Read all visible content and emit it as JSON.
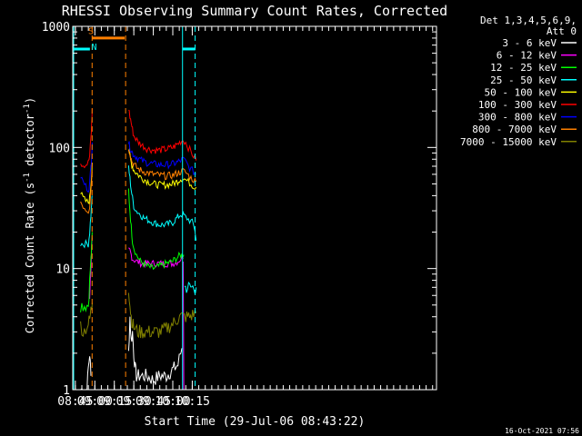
{
  "chart_data": {
    "type": "line",
    "title": "RHESSI Observing Summary Count Rates, Corrected",
    "xlabel": "Start Time (29-Jul-06 08:43:22)",
    "ylabel_main": "Corrected Count Rate (s",
    "ylabel_sup1": "-1",
    "ylabel_mid": " detector",
    "ylabel_sup2": "-1",
    "ylabel_end": ")",
    "y_scale": "log",
    "ylim": [
      1,
      1000
    ],
    "xlim_min": [
      523,
      803
    ],
    "x_ticks": [
      {
        "t": 525,
        "label": "08:45"
      },
      {
        "t": 540,
        "label": "09:00"
      },
      {
        "t": 555,
        "label": "09:15"
      },
      {
        "t": 570,
        "label": "09:30"
      },
      {
        "t": 585,
        "label": "09:45"
      },
      {
        "t": 600,
        "label": "10:00"
      },
      {
        "t": 615,
        "label": "10:15"
      }
    ],
    "y_ticks": [
      {
        "v": 1,
        "label": "1"
      },
      {
        "v": 10,
        "label": "10"
      },
      {
        "v": 100,
        "label": "100"
      },
      {
        "v": 1000,
        "label": "1000"
      }
    ],
    "legend_header": [
      "Det 1,3,4,5,6,9,",
      "Att 0"
    ],
    "legend_position": "right",
    "series": [
      {
        "name": "3 - 6 keV",
        "color": "#ffffff",
        "segments": [
          [
            [
              529,
              1
            ],
            [
              534,
              1
            ],
            [
              535,
              1.5
            ],
            [
              536,
              2
            ],
            [
              537,
              1.3
            ]
          ],
          [
            [
              566,
              2
            ],
            [
              567,
              4
            ],
            [
              568,
              2.5
            ],
            [
              569,
              3
            ],
            [
              570,
              2
            ],
            [
              571,
              1.5
            ],
            [
              572,
              1.3
            ],
            [
              575,
              1.3
            ],
            [
              580,
              1.3
            ],
            [
              585,
              1.2
            ],
            [
              590,
              1.3
            ],
            [
              595,
              1.3
            ],
            [
              598,
              1.4
            ],
            [
              601,
              1.5
            ],
            [
              604,
              1.6
            ],
            [
              606,
              2
            ],
            [
              607,
              2.2
            ]
          ]
        ]
      },
      {
        "name": "6 - 12 keV",
        "color": "#ff00ff",
        "segments": [
          [
            [
              536,
              6
            ],
            [
              536.5,
              8
            ],
            [
              537,
              10
            ],
            [
              537.5,
              14
            ],
            [
              538,
              18
            ]
          ],
          [
            [
              566,
              14
            ],
            [
              567,
              14
            ],
            [
              568,
              13
            ],
            [
              569,
              12
            ],
            [
              572,
              11.5
            ],
            [
              576,
              11
            ],
            [
              580,
              11
            ],
            [
              585,
              11
            ],
            [
              590,
              11
            ],
            [
              595,
              11
            ],
            [
              600,
              11
            ],
            [
              604,
              11.5
            ],
            [
              606,
              12
            ],
            [
              608,
              12
            ]
          ],
          [
            [
              608,
              12
            ],
            [
              608.5,
              1
            ]
          ]
        ]
      },
      {
        "name": "12 - 25 keV",
        "color": "#00ff00",
        "segments": [
          [
            [
              529,
              5
            ],
            [
              531,
              5
            ],
            [
              533,
              5
            ],
            [
              535,
              5
            ],
            [
              536,
              8
            ],
            [
              537,
              12
            ],
            [
              537.5,
              15
            ],
            [
              538,
              20
            ]
          ],
          [
            [
              566,
              45
            ],
            [
              567,
              30
            ],
            [
              568,
              22
            ],
            [
              569,
              17
            ],
            [
              570,
              15
            ],
            [
              572,
              13
            ],
            [
              575,
              11.5
            ],
            [
              580,
              10.5
            ],
            [
              585,
              10
            ],
            [
              590,
              10.5
            ],
            [
              595,
              11
            ],
            [
              600,
              11.5
            ],
            [
              604,
              12.5
            ],
            [
              607,
              13
            ],
            [
              608.5,
              13
            ]
          ]
        ]
      },
      {
        "name": "25 - 50 keV",
        "color": "#00ffff",
        "segments": [
          [
            [
              529,
              16
            ],
            [
              531,
              16
            ],
            [
              533,
              16
            ],
            [
              535,
              16
            ],
            [
              536,
              20
            ],
            [
              537,
              28
            ],
            [
              537.5,
              34
            ],
            [
              538,
              40
            ]
          ],
          [
            [
              566,
              70
            ],
            [
              567,
              55
            ],
            [
              568,
              45
            ],
            [
              569,
              38
            ],
            [
              570,
              33
            ],
            [
              572,
              30
            ],
            [
              575,
              28
            ],
            [
              578,
              26
            ],
            [
              580,
              25.5
            ],
            [
              585,
              24
            ],
            [
              590,
              23
            ],
            [
              595,
              23
            ],
            [
              600,
              24
            ],
            [
              603,
              26
            ],
            [
              606,
              28
            ],
            [
              608,
              28
            ],
            [
              609,
              27
            ],
            [
              611,
              26
            ],
            [
              613,
              25
            ],
            [
              615,
              24
            ],
            [
              617,
              21
            ],
            [
              618,
              17
            ]
          ],
          [
            [
              609,
              7
            ],
            [
              613,
              7
            ],
            [
              617,
              7
            ],
            [
              618,
              7
            ]
          ]
        ]
      },
      {
        "name": "50 - 100 keV",
        "color": "#ffff00",
        "segments": [
          [
            [
              529,
              42
            ],
            [
              531,
              38
            ],
            [
              533,
              36
            ],
            [
              535,
              35
            ],
            [
              536,
              38
            ],
            [
              537,
              50
            ],
            [
              537.5,
              60
            ],
            [
              538,
              75
            ]
          ],
          [
            [
              566,
              95
            ],
            [
              567,
              85
            ],
            [
              568,
              75
            ],
            [
              569,
              70
            ],
            [
              570,
              65
            ],
            [
              573,
              60
            ],
            [
              576,
              56
            ],
            [
              580,
              53
            ],
            [
              585,
              50
            ],
            [
              590,
              49
            ],
            [
              595,
              49
            ],
            [
              600,
              50
            ],
            [
              603,
              52
            ],
            [
              606,
              55
            ],
            [
              608,
              56
            ],
            [
              610,
              54
            ],
            [
              612,
              52
            ],
            [
              614,
              50
            ],
            [
              616,
              48
            ],
            [
              618,
              47
            ]
          ]
        ]
      },
      {
        "name": "100 - 300 keV",
        "color": "#ff0000",
        "segments": [
          [
            [
              529,
              75
            ],
            [
              531,
              72
            ],
            [
              533,
              72
            ],
            [
              535,
              75
            ],
            [
              536,
              85
            ],
            [
              537,
              120
            ],
            [
              537.5,
              150
            ],
            [
              538,
              210
            ]
          ],
          [
            [
              566,
              210
            ],
            [
              567,
              180
            ],
            [
              568,
              160
            ],
            [
              569,
              140
            ],
            [
              570,
              125
            ],
            [
              573,
              112
            ],
            [
              576,
              105
            ],
            [
              580,
              98
            ],
            [
              585,
              95
            ],
            [
              590,
              95
            ],
            [
              595,
              97
            ],
            [
              600,
              100
            ],
            [
              603,
              105
            ],
            [
              606,
              112
            ],
            [
              608,
              115
            ],
            [
              610,
              110
            ],
            [
              612,
              100
            ],
            [
              614,
              92
            ],
            [
              616,
              85
            ],
            [
              618,
              78
            ]
          ]
        ]
      },
      {
        "name": "300 - 800 keV",
        "color": "#0000ff",
        "segments": [
          [
            [
              529,
              58
            ],
            [
              531,
              52
            ],
            [
              533,
              48
            ],
            [
              535,
              45
            ],
            [
              536,
              50
            ],
            [
              537,
              70
            ],
            [
              537.5,
              85
            ],
            [
              538,
              110
            ]
          ],
          [
            [
              566,
              110
            ],
            [
              567,
              100
            ],
            [
              568,
              95
            ],
            [
              569,
              90
            ],
            [
              570,
              87
            ],
            [
              573,
              82
            ],
            [
              576,
              78
            ],
            [
              580,
              75
            ],
            [
              585,
              73
            ],
            [
              590,
              72
            ],
            [
              595,
              72
            ],
            [
              600,
              73
            ],
            [
              603,
              75
            ],
            [
              606,
              78
            ],
            [
              608,
              80
            ],
            [
              610,
              76
            ],
            [
              612,
              70
            ],
            [
              614,
              66
            ],
            [
              616,
              63
            ],
            [
              618,
              60
            ]
          ]
        ]
      },
      {
        "name": "800 - 7000 keV",
        "color": "#ff8000",
        "segments": [
          [
            [
              529,
              36
            ],
            [
              531,
              33
            ],
            [
              533,
              31
            ],
            [
              535,
              30
            ],
            [
              536,
              33
            ],
            [
              537,
              45
            ],
            [
              537.5,
              55
            ],
            [
              538,
              65
            ]
          ],
          [
            [
              566,
              100
            ],
            [
              567,
              90
            ],
            [
              568,
              80
            ],
            [
              569,
              75
            ],
            [
              570,
              72
            ],
            [
              573,
              67
            ],
            [
              576,
              64
            ],
            [
              580,
              62
            ],
            [
              585,
              60
            ],
            [
              590,
              59
            ],
            [
              595,
              58
            ],
            [
              600,
              59
            ],
            [
              603,
              61
            ],
            [
              606,
              63
            ],
            [
              608,
              64
            ],
            [
              610,
              62
            ],
            [
              612,
              59
            ],
            [
              614,
              56
            ],
            [
              616,
              54
            ],
            [
              618,
              52
            ]
          ]
        ]
      },
      {
        "name": "7000 - 15000 keV",
        "color": "#808000",
        "segments": [
          [
            [
              529,
              3.5
            ],
            [
              531,
              3
            ],
            [
              533,
              3.2
            ],
            [
              535,
              3.5
            ],
            [
              536,
              3.8
            ],
            [
              537,
              4.5
            ],
            [
              537.5,
              5
            ],
            [
              538,
              5.2
            ]
          ],
          [
            [
              566,
              7
            ],
            [
              567,
              5
            ],
            [
              568,
              4
            ],
            [
              569,
              3.5
            ],
            [
              570,
              3.3
            ],
            [
              573,
              3
            ],
            [
              576,
              3
            ],
            [
              580,
              3
            ],
            [
              585,
              3
            ],
            [
              590,
              3
            ],
            [
              595,
              3.2
            ],
            [
              600,
              3.5
            ],
            [
              603,
              3.8
            ],
            [
              606,
              4
            ],
            [
              608,
              4
            ],
            [
              610,
              4
            ],
            [
              613,
              4
            ],
            [
              616,
              4.2
            ],
            [
              618,
              4.3
            ]
          ]
        ]
      }
    ],
    "status_bars": [
      {
        "color": "#00ffff",
        "t0": 523.3,
        "t1": 536.2,
        "v": 650
      },
      {
        "color": "#ff8000",
        "t0": 538,
        "t1": 563,
        "v": 800
      },
      {
        "color": "#00ffff",
        "t0": 607.5,
        "t1": 617.3,
        "v": 650
      }
    ],
    "status_labels": [
      {
        "text": "S",
        "color": "#ff8000",
        "t": 537,
        "v": 860
      },
      {
        "text": "N",
        "color": "#00ffff",
        "t": 539.5,
        "v": 640
      }
    ],
    "vlines": [
      {
        "t": 523.7,
        "color": "#00ffff",
        "dashed": false
      },
      {
        "t": 537.9,
        "color": "#ff8000",
        "dashed": true
      },
      {
        "t": 563.7,
        "color": "#ff8000",
        "dashed": true
      },
      {
        "t": 607.5,
        "color": "#00ffff",
        "dashed": false
      },
      {
        "t": 617.2,
        "color": "#00ffff",
        "dashed": true
      }
    ]
  },
  "footer_timestamp": "16-Oct-2021 07:56"
}
